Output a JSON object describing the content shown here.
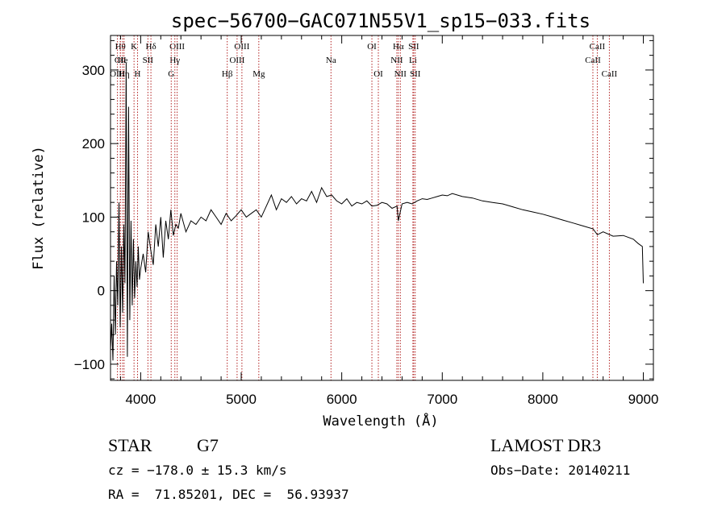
{
  "chart_data": {
    "type": "line",
    "title": "spec−56700−GAC071N55V1_sp15−033.fits",
    "xlabel": "Wavelength (Å)",
    "ylabel": "Flux (relative)",
    "xlim": [
      3700,
      9100
    ],
    "ylim": [
      -122,
      347
    ],
    "x_ticks": [
      4000,
      5000,
      6000,
      7000,
      8000,
      9000
    ],
    "x_tick_labels": [
      "4000",
      "5000",
      "6000",
      "7000",
      "8000",
      "9000"
    ],
    "y_ticks": [
      -100,
      0,
      100,
      200,
      300
    ],
    "y_tick_labels": [
      "−100",
      "0",
      "100",
      "200",
      "300"
    ],
    "series": [
      {
        "name": "spectrum",
        "x": [
          3700,
          3712,
          3724,
          3736,
          3748,
          3760,
          3772,
          3784,
          3796,
          3808,
          3820,
          3832,
          3844,
          3856,
          3868,
          3880,
          3892,
          3904,
          3916,
          3928,
          3940,
          3952,
          3964,
          3976,
          3988,
          4000,
          4025,
          4050,
          4075,
          4100,
          4125,
          4150,
          4175,
          4200,
          4225,
          4250,
          4275,
          4300,
          4325,
          4350,
          4375,
          4400,
          4450,
          4500,
          4550,
          4600,
          4650,
          4700,
          4750,
          4800,
          4850,
          4900,
          4950,
          5000,
          5050,
          5100,
          5150,
          5200,
          5250,
          5300,
          5350,
          5400,
          5450,
          5500,
          5550,
          5600,
          5650,
          5700,
          5750,
          5800,
          5850,
          5900,
          5950,
          6000,
          6050,
          6100,
          6150,
          6200,
          6250,
          6300,
          6350,
          6400,
          6450,
          6500,
          6550,
          6563,
          6600,
          6650,
          6700,
          6750,
          6800,
          6850,
          6900,
          6950,
          7000,
          7050,
          7100,
          7200,
          7300,
          7400,
          7500,
          7600,
          7700,
          7800,
          7900,
          8000,
          8100,
          8200,
          8300,
          8400,
          8500,
          8542,
          8600,
          8700,
          8800,
          8900,
          8950,
          8990,
          9000
        ],
        "y": [
          -80,
          -45,
          -95,
          20,
          -60,
          40,
          -20,
          120,
          -50,
          60,
          -30,
          90,
          10,
          310,
          -90,
          250,
          -40,
          95,
          -20,
          70,
          -10,
          40,
          5,
          60,
          15,
          30,
          50,
          25,
          80,
          55,
          35,
          90,
          60,
          100,
          45,
          95,
          70,
          110,
          75,
          90,
          85,
          105,
          80,
          95,
          90,
          100,
          95,
          110,
          100,
          90,
          105,
          95,
          102,
          110,
          100,
          105,
          110,
          100,
          115,
          130,
          110,
          125,
          120,
          128,
          118,
          125,
          122,
          135,
          120,
          140,
          128,
          130,
          122,
          118,
          125,
          115,
          120,
          118,
          122,
          115,
          116,
          120,
          118,
          112,
          115,
          95,
          118,
          120,
          118,
          122,
          125,
          124,
          126,
          128,
          130,
          129,
          132,
          128,
          126,
          122,
          120,
          118,
          114,
          110,
          107,
          104,
          100,
          96,
          92,
          88,
          84,
          76,
          80,
          74,
          75,
          70,
          64,
          60,
          10
        ]
      }
    ],
    "lines": [
      {
        "name": "Hθ",
        "wavelength": 3798,
        "row": 1
      },
      {
        "name": "CII",
        "wavelength": 3798,
        "row": 2
      },
      {
        "name": "OIII",
        "wavelength": 3769,
        "row": 3
      },
      {
        "name": "Hη",
        "wavelength": 3835,
        "row": 3
      },
      {
        "name": "He",
        "wavelength": 3820,
        "row": 2
      },
      {
        "name": "K",
        "wavelength": 3934,
        "row": 1
      },
      {
        "name": "H",
        "wavelength": 3969,
        "row": 3
      },
      {
        "name": "SII",
        "wavelength": 4072,
        "row": 2
      },
      {
        "name": "Hδ",
        "wavelength": 4102,
        "row": 1
      },
      {
        "name": "OIII",
        "wavelength": 4363,
        "row": 1
      },
      {
        "name": "Hγ",
        "wavelength": 4340,
        "row": 2
      },
      {
        "name": "G",
        "wavelength": 4304,
        "row": 3
      },
      {
        "name": "Hβ",
        "wavelength": 4861,
        "row": 3
      },
      {
        "name": "OIII",
        "wavelength": 5007,
        "row": 1
      },
      {
        "name": "OIII",
        "wavelength": 4959,
        "row": 2
      },
      {
        "name": "Mg",
        "wavelength": 5175,
        "row": 3
      },
      {
        "name": "Na",
        "wavelength": 5893,
        "row": 2
      },
      {
        "name": "OI",
        "wavelength": 6300,
        "row": 1
      },
      {
        "name": "OI",
        "wavelength": 6364,
        "row": 3
      },
      {
        "name": "Hα",
        "wavelength": 6563,
        "row": 1
      },
      {
        "name": "NII",
        "wavelength": 6548,
        "row": 2
      },
      {
        "name": "NII",
        "wavelength": 6583,
        "row": 3
      },
      {
        "name": "SII",
        "wavelength": 6716,
        "row": 1
      },
      {
        "name": "Li",
        "wavelength": 6708,
        "row": 2
      },
      {
        "name": "SII",
        "wavelength": 6731,
        "row": 3
      },
      {
        "name": "CaII",
        "wavelength": 8542,
        "row": 1
      },
      {
        "name": "CaII",
        "wavelength": 8498,
        "row": 2
      },
      {
        "name": "CaII",
        "wavelength": 8662,
        "row": 3
      }
    ]
  },
  "info": {
    "object_class": "STAR",
    "subclass": "G7",
    "survey": "LAMOST DR3",
    "cz": "cz = −178.0 ± 15.3 km/s",
    "obs_date": "Obs−Date: 20140211",
    "coords": "RA =  71.85201, DEC =  56.93937"
  },
  "colors": {
    "line_marker": "#b22222",
    "spectrum": "#000000",
    "axis": "#000000"
  }
}
